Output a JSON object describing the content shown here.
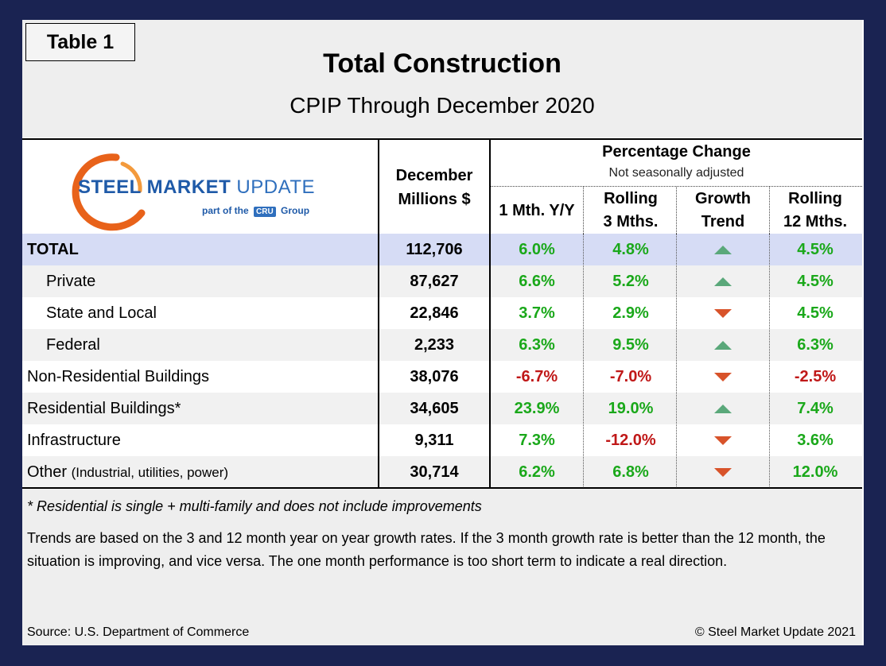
{
  "header": {
    "table_tag": "Table 1",
    "title": "Total Construction",
    "subtitle": "CPIP Through December 2020"
  },
  "logo": {
    "word1": "STEEL",
    "word2": "MARKET",
    "word3": "UPDATE",
    "tagline_pre": "part of the",
    "tagline_badge": "CRU",
    "tagline_post": "Group",
    "ring_color": "#e8621a"
  },
  "columns": {
    "december_line1": "December",
    "december_line2": "Millions $",
    "pct_change": "Percentage Change",
    "pct_note": "Not seasonally adjusted",
    "m1": "1 Mth. Y/Y",
    "r3_line1": "Rolling",
    "r3_line2": "3 Mths.",
    "gt_line1": "Growth",
    "gt_line2": "Trend",
    "r12_line1": "Rolling",
    "r12_line2": "12 Mths."
  },
  "rows": [
    {
      "label": "TOTAL",
      "extra": "",
      "value": "112,706",
      "m1": "6.0%",
      "r3": "4.8%",
      "trend": "up",
      "r12": "4.5%"
    },
    {
      "label": "Private",
      "extra": "",
      "value": "87,627",
      "m1": "6.6%",
      "r3": "5.2%",
      "trend": "up",
      "r12": "4.5%"
    },
    {
      "label": "State and Local",
      "extra": "",
      "value": "22,846",
      "m1": "3.7%",
      "r3": "2.9%",
      "trend": "down",
      "r12": "4.5%"
    },
    {
      "label": "Federal",
      "extra": "",
      "value": "2,233",
      "m1": "6.3%",
      "r3": "9.5%",
      "trend": "up",
      "r12": "6.3%"
    },
    {
      "label": "Non-Residential Buildings",
      "extra": "",
      "value": "38,076",
      "m1": "-6.7%",
      "r3": "-7.0%",
      "trend": "down",
      "r12": "-2.5%"
    },
    {
      "label": "Residential Buildings*",
      "extra": "",
      "value": "34,605",
      "m1": "23.9%",
      "r3": "19.0%",
      "trend": "up",
      "r12": "7.4%"
    },
    {
      "label": "Infrastructure",
      "extra": "",
      "value": "9,311",
      "m1": "7.3%",
      "r3": "-12.0%",
      "trend": "down",
      "r12": "3.6%"
    },
    {
      "label": "Other",
      "extra": "(Industrial, utilities, power)",
      "value": "30,714",
      "m1": "6.2%",
      "r3": "6.8%",
      "trend": "down",
      "r12": "12.0%"
    }
  ],
  "footer": {
    "note": "* Residential is single + multi-family and does not include improvements",
    "trend_text": "Trends are based on the 3 and 12 month year on year growth rates. If the 3 month growth rate is better than the 12 month, the situation is improving, and vice versa. The one month performance is too short term to indicate a real direction.",
    "source": "Source: U.S. Department of Commerce",
    "copyright": "© Steel Market Update 2021"
  },
  "colors": {
    "positive": "#1aa81a",
    "negative": "#c01818",
    "trend_up": "#5aa87a",
    "trend_down": "#d8532a",
    "total_row": "#d6dcf5",
    "frame": "#1a2352"
  }
}
